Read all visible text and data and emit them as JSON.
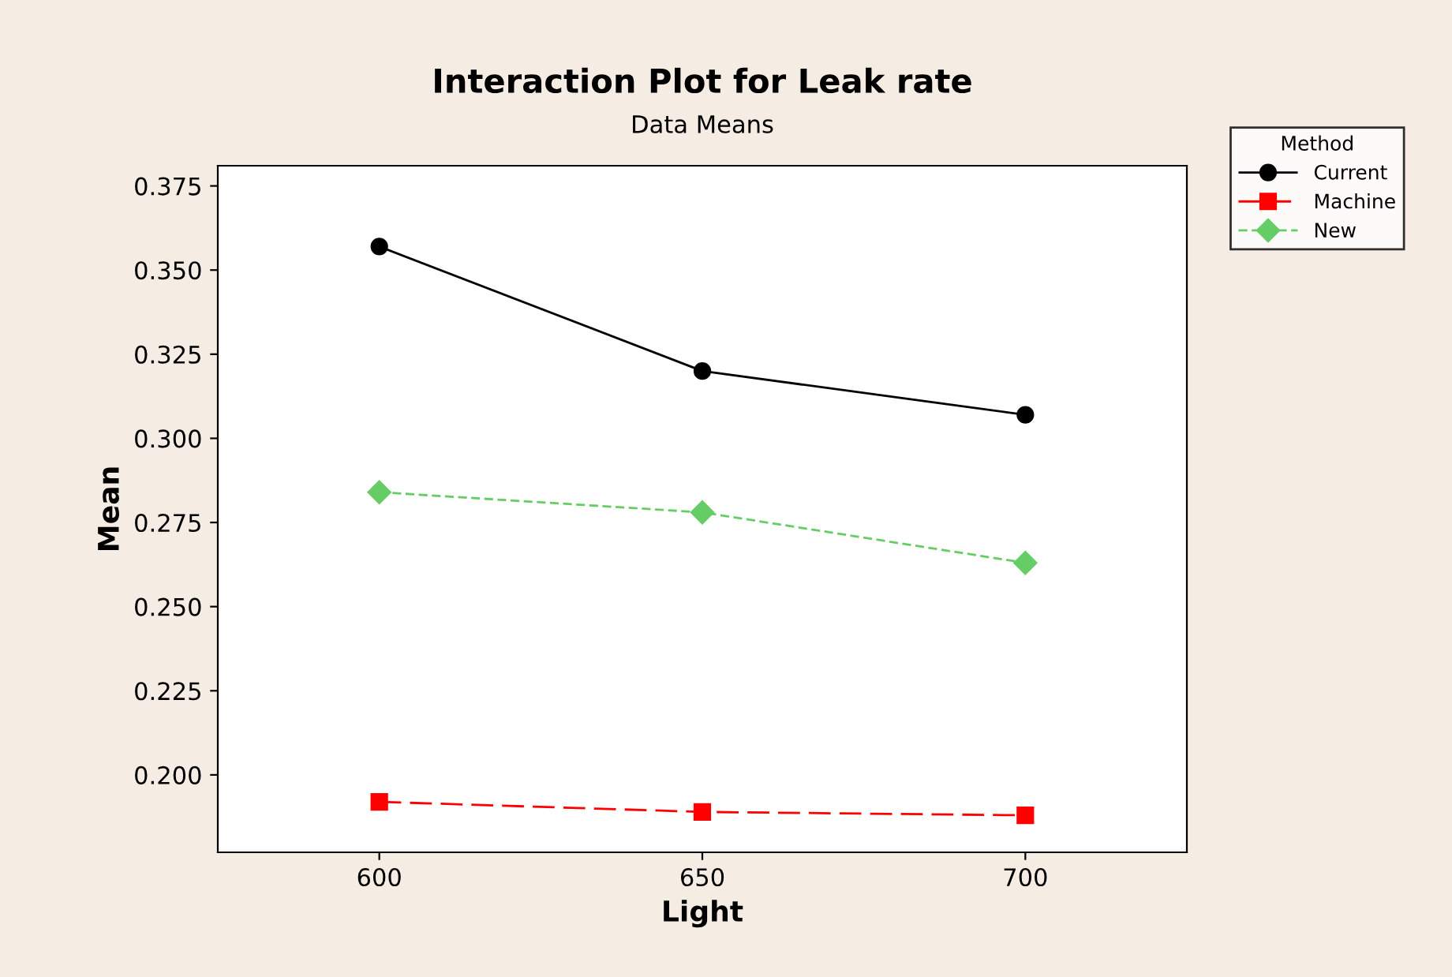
{
  "chart_data": {
    "type": "line",
    "title": "Interaction Plot for Leak rate",
    "subtitle": "Data Means",
    "xlabel": "Light",
    "ylabel": "Mean",
    "legend_title": "Method",
    "x": [
      600,
      650,
      700
    ],
    "series": [
      {
        "name": "Current",
        "color": "#000000",
        "values": [
          0.357,
          0.32,
          0.307
        ],
        "marker": "circle",
        "line_style": "solid"
      },
      {
        "name": "Machine",
        "color": "#ff0000",
        "values": [
          0.192,
          0.189,
          0.188
        ],
        "marker": "square",
        "line_style": "dashed"
      },
      {
        "name": "New",
        "color": "#66cc66",
        "values": [
          0.284,
          0.278,
          0.263
        ],
        "marker": "diamond",
        "line_style": "dotted"
      }
    ],
    "xlim": [
      575,
      725
    ],
    "xticks": [
      600,
      650,
      700
    ],
    "ylim": [
      0.177,
      0.381
    ],
    "yticks": [
      {
        "value": 0.2,
        "label": "0.200"
      },
      {
        "value": 0.225,
        "label": "0.225"
      },
      {
        "value": 0.25,
        "label": "0.250"
      },
      {
        "value": 0.275,
        "label": "0.275"
      },
      {
        "value": 0.3,
        "label": "0.300"
      },
      {
        "value": 0.325,
        "label": "0.325"
      },
      {
        "value": 0.35,
        "label": "0.350"
      },
      {
        "value": 0.375,
        "label": "0.375"
      }
    ],
    "grid": false,
    "legend": "top right"
  }
}
